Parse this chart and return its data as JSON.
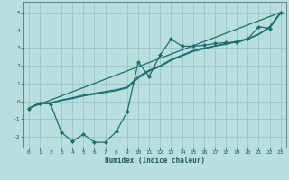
{
  "xlabel": "Humidex (Indice chaleur)",
  "bg_color": "#b8dede",
  "line_color": "#1a6e6e",
  "grid_color": "#90c0c0",
  "xlim": [
    -0.5,
    23.5
  ],
  "ylim": [
    -2.6,
    5.6
  ],
  "xticks": [
    0,
    1,
    2,
    3,
    4,
    5,
    6,
    7,
    8,
    9,
    10,
    11,
    12,
    13,
    14,
    15,
    16,
    17,
    18,
    19,
    20,
    21,
    22,
    23
  ],
  "yticks": [
    -2,
    -1,
    0,
    1,
    2,
    3,
    4,
    5
  ],
  "wavy_x": [
    0,
    1,
    2,
    3,
    4,
    5,
    6,
    7,
    8,
    9,
    10,
    11,
    12,
    13,
    14,
    15,
    16,
    17,
    18,
    19,
    20,
    21,
    22,
    23
  ],
  "wavy_y": [
    -0.4,
    -0.1,
    -0.15,
    -1.75,
    -2.25,
    -1.85,
    -2.3,
    -2.3,
    -1.7,
    -0.6,
    2.2,
    1.4,
    2.6,
    3.5,
    3.1,
    3.1,
    3.15,
    3.25,
    3.3,
    3.3,
    3.5,
    4.2,
    4.1,
    5.0
  ],
  "smooth_x": [
    0,
    1,
    2,
    3,
    4,
    5,
    6,
    7,
    8,
    9,
    10,
    11,
    12,
    13,
    14,
    15,
    16,
    17,
    18,
    19,
    20,
    21,
    22,
    23
  ],
  "smooth_y": [
    -0.4,
    -0.1,
    -0.1,
    0.05,
    0.15,
    0.3,
    0.4,
    0.5,
    0.6,
    0.75,
    1.3,
    1.7,
    1.95,
    2.3,
    2.55,
    2.8,
    2.95,
    3.1,
    3.2,
    3.35,
    3.5,
    3.75,
    4.15,
    4.95
  ],
  "trend_x": [
    0,
    23
  ],
  "trend_y": [
    -0.4,
    5.0
  ],
  "smooth2_x": [
    0,
    1,
    2,
    3,
    4,
    5,
    6,
    7,
    8,
    9,
    10,
    11,
    12,
    13,
    14,
    15,
    16,
    17,
    18,
    19,
    20,
    21,
    22,
    23
  ],
  "smooth2_y": [
    -0.4,
    -0.08,
    -0.08,
    0.08,
    0.2,
    0.35,
    0.45,
    0.55,
    0.65,
    0.8,
    1.4,
    1.75,
    2.0,
    2.35,
    2.6,
    2.85,
    3.0,
    3.12,
    3.25,
    3.38,
    3.52,
    3.78,
    4.2,
    5.0
  ]
}
